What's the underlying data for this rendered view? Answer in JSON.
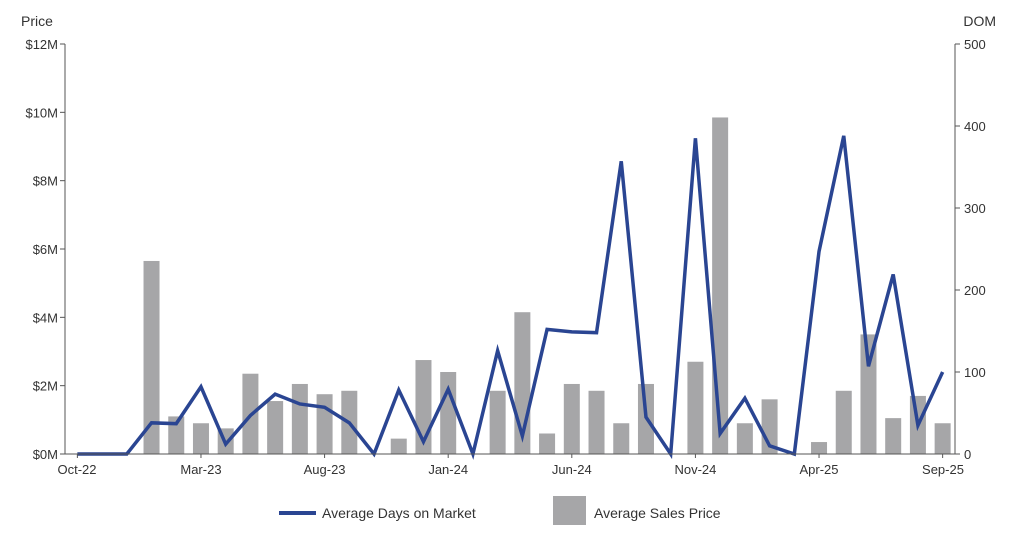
{
  "chart_data": {
    "type": "bar",
    "title": "",
    "ylabel_left": "Price",
    "ylabel_right": "DOM",
    "x_tick_labels": [
      "Oct-22",
      "Mar-23",
      "Aug-23",
      "Jan-24",
      "Jun-24",
      "Nov-24",
      "Apr-25",
      "Sep-25"
    ],
    "y_left_ticks": [
      "$0M",
      "$2M",
      "$4M",
      "$6M",
      "$8M",
      "$10M",
      "$12M"
    ],
    "y_right_ticks": [
      "0",
      "100",
      "200",
      "300",
      "400",
      "500"
    ],
    "ylim_left": [
      0,
      12
    ],
    "ylim_right": [
      0,
      500
    ],
    "legend_position": "bottom",
    "grid": false,
    "categories": [
      "Oct-22",
      "Nov-22",
      "Dec-22",
      "Jan-23",
      "Feb-23",
      "Mar-23",
      "Apr-23",
      "May-23",
      "Jun-23",
      "Jul-23",
      "Aug-23",
      "Sep-23",
      "Oct-23",
      "Nov-23",
      "Dec-23",
      "Jan-24",
      "Feb-24",
      "Mar-24",
      "Apr-24",
      "May-24",
      "Jun-24",
      "Jul-24",
      "Aug-24",
      "Sep-24",
      "Oct-24",
      "Nov-24",
      "Dec-24",
      "Jan-25",
      "Feb-25",
      "Mar-25",
      "Apr-25",
      "May-25",
      "Jun-25",
      "Jul-25",
      "Aug-25",
      "Sep-25"
    ],
    "series": [
      {
        "name": "Average Sales Price",
        "kind": "bar",
        "axis": "left",
        "color": "#a6a6a8",
        "values": [
          0,
          0,
          0,
          5.65,
          1.1,
          0.9,
          0.75,
          2.35,
          1.55,
          2.05,
          1.75,
          1.85,
          0,
          0.45,
          2.75,
          2.4,
          0,
          1.85,
          4.15,
          0.6,
          2.05,
          1.85,
          0.9,
          2.05,
          0,
          2.7,
          9.85,
          0.9,
          1.6,
          0,
          0.35,
          1.85,
          3.5,
          1.05,
          1.7,
          0.9
        ]
      },
      {
        "name": "Average Days on Market",
        "kind": "line",
        "axis": "right",
        "color": "#2a4592",
        "values": [
          0,
          0,
          0,
          38,
          37,
          82,
          12,
          47,
          73,
          61,
          57,
          38,
          0,
          78,
          15,
          79,
          0,
          126,
          22,
          152,
          149,
          148,
          357,
          45,
          0,
          385,
          25,
          68,
          10,
          0,
          247,
          388,
          107,
          219,
          35,
          100
        ]
      }
    ]
  }
}
